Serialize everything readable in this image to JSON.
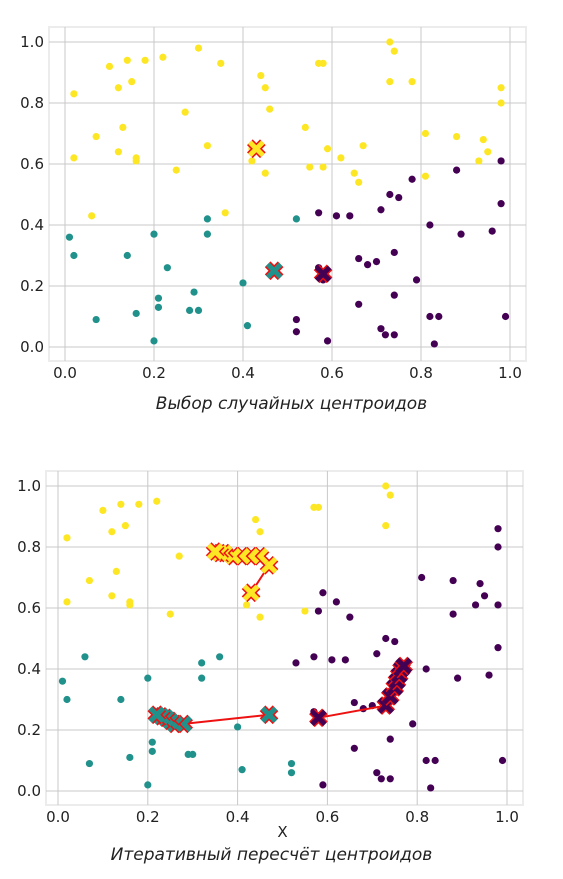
{
  "colors": {
    "yellow": "#fde725",
    "teal": "#21918c",
    "purple": "#440154",
    "path": "#ee1111",
    "centroid_outline": "#ee1111"
  },
  "chart_data": [
    {
      "type": "scatter",
      "title": "",
      "caption": "Выбор случайных центроидов",
      "xlabel": "",
      "ylabel": "",
      "xlim": [
        0,
        1
      ],
      "ylim": [
        0,
        1
      ],
      "xticks": [
        "0.0",
        "0.2",
        "0.4",
        "0.6",
        "0.8",
        "1.0"
      ],
      "yticks": [
        "0.0",
        "0.2",
        "0.4",
        "0.6",
        "0.8",
        "1.0"
      ],
      "grid": true,
      "series": [
        {
          "color": "yellow",
          "points": [
            [
              0.3,
              0.98
            ],
            [
              0.73,
              1.0
            ],
            [
              0.74,
              0.97
            ],
            [
              0.22,
              0.95
            ],
            [
              0.14,
              0.94
            ],
            [
              0.18,
              0.94
            ],
            [
              0.1,
              0.92
            ],
            [
              0.35,
              0.93
            ],
            [
              0.57,
              0.93
            ],
            [
              0.58,
              0.93
            ],
            [
              0.44,
              0.89
            ],
            [
              0.15,
              0.87
            ],
            [
              0.12,
              0.85
            ],
            [
              0.45,
              0.85
            ],
            [
              0.73,
              0.87
            ],
            [
              0.78,
              0.87
            ],
            [
              0.02,
              0.83
            ],
            [
              0.98,
              0.85
            ],
            [
              0.46,
              0.78
            ],
            [
              0.27,
              0.77
            ],
            [
              0.98,
              0.8
            ],
            [
              0.13,
              0.72
            ],
            [
              0.54,
              0.72
            ],
            [
              0.07,
              0.69
            ],
            [
              0.81,
              0.7
            ],
            [
              0.88,
              0.69
            ],
            [
              0.32,
              0.66
            ],
            [
              0.42,
              0.65
            ],
            [
              0.59,
              0.65
            ],
            [
              0.67,
              0.66
            ],
            [
              0.94,
              0.68
            ],
            [
              0.95,
              0.64
            ],
            [
              0.12,
              0.64
            ],
            [
              0.16,
              0.62
            ],
            [
              0.16,
              0.61
            ],
            [
              0.02,
              0.62
            ],
            [
              0.62,
              0.62
            ],
            [
              0.93,
              0.61
            ],
            [
              0.42,
              0.61
            ],
            [
              0.55,
              0.59
            ],
            [
              0.58,
              0.59
            ],
            [
              0.25,
              0.58
            ],
            [
              0.45,
              0.57
            ],
            [
              0.65,
              0.57
            ],
            [
              0.81,
              0.56
            ],
            [
              0.66,
              0.54
            ],
            [
              0.06,
              0.43
            ],
            [
              0.36,
              0.44
            ]
          ]
        },
        {
          "color": "teal",
          "points": [
            [
              0.01,
              0.36
            ],
            [
              0.02,
              0.3
            ],
            [
              0.07,
              0.09
            ],
            [
              0.14,
              0.3
            ],
            [
              0.16,
              0.11
            ],
            [
              0.2,
              0.37
            ],
            [
              0.21,
              0.16
            ],
            [
              0.21,
              0.13
            ],
            [
              0.2,
              0.02
            ],
            [
              0.23,
              0.26
            ],
            [
              0.29,
              0.18
            ],
            [
              0.28,
              0.12
            ],
            [
              0.3,
              0.12
            ],
            [
              0.32,
              0.42
            ],
            [
              0.32,
              0.37
            ],
            [
              0.4,
              0.21
            ],
            [
              0.41,
              0.07
            ],
            [
              0.52,
              0.42
            ]
          ]
        },
        {
          "color": "purple",
          "points": [
            [
              0.57,
              0.44
            ],
            [
              0.61,
              0.43
            ],
            [
              0.64,
              0.43
            ],
            [
              0.71,
              0.45
            ],
            [
              0.73,
              0.5
            ],
            [
              0.75,
              0.49
            ],
            [
              0.78,
              0.55
            ],
            [
              0.88,
              0.58
            ],
            [
              0.98,
              0.61
            ],
            [
              0.98,
              0.47
            ],
            [
              0.82,
              0.4
            ],
            [
              0.89,
              0.37
            ],
            [
              0.96,
              0.38
            ],
            [
              0.66,
              0.29
            ],
            [
              0.68,
              0.27
            ],
            [
              0.7,
              0.28
            ],
            [
              0.74,
              0.31
            ],
            [
              0.57,
              0.26
            ],
            [
              0.58,
              0.22
            ],
            [
              0.79,
              0.22
            ],
            [
              0.66,
              0.14
            ],
            [
              0.74,
              0.17
            ],
            [
              0.52,
              0.09
            ],
            [
              0.52,
              0.05
            ],
            [
              0.71,
              0.06
            ],
            [
              0.72,
              0.04
            ],
            [
              0.74,
              0.04
            ],
            [
              0.82,
              0.1
            ],
            [
              0.84,
              0.1
            ],
            [
              0.99,
              0.1
            ],
            [
              0.83,
              0.01
            ],
            [
              0.59,
              0.02
            ]
          ]
        }
      ],
      "centroids": [
        {
          "color": "yellow",
          "path": [
            [
              0.43,
              0.65
            ]
          ]
        },
        {
          "color": "teal",
          "path": [
            [
              0.47,
              0.25
            ]
          ]
        },
        {
          "color": "purple",
          "path": [
            [
              0.58,
              0.24
            ]
          ]
        }
      ]
    },
    {
      "type": "scatter",
      "title": "",
      "caption": "Итеративный пересчёт центроидов",
      "xlabel": "X",
      "ylabel": "",
      "xlim": [
        0,
        1
      ],
      "ylim": [
        0,
        1
      ],
      "xticks": [
        "0.0",
        "0.2",
        "0.4",
        "0.6",
        "0.8",
        "1.0"
      ],
      "yticks": [
        "0.0",
        "0.2",
        "0.4",
        "0.6",
        "0.8",
        "1.0"
      ],
      "grid": true,
      "series": [
        {
          "color": "yellow",
          "points": [
            [
              0.73,
              1.0
            ],
            [
              0.74,
              0.97
            ],
            [
              0.22,
              0.95
            ],
            [
              0.14,
              0.94
            ],
            [
              0.18,
              0.94
            ],
            [
              0.1,
              0.92
            ],
            [
              0.57,
              0.93
            ],
            [
              0.58,
              0.93
            ],
            [
              0.44,
              0.89
            ],
            [
              0.15,
              0.87
            ],
            [
              0.12,
              0.85
            ],
            [
              0.45,
              0.85
            ],
            [
              0.73,
              0.87
            ],
            [
              0.02,
              0.83
            ],
            [
              0.27,
              0.77
            ],
            [
              0.13,
              0.72
            ],
            [
              0.07,
              0.69
            ],
            [
              0.12,
              0.64
            ],
            [
              0.16,
              0.62
            ],
            [
              0.16,
              0.61
            ],
            [
              0.02,
              0.62
            ],
            [
              0.25,
              0.58
            ],
            [
              0.45,
              0.57
            ],
            [
              0.55,
              0.59
            ],
            [
              0.42,
              0.61
            ]
          ]
        },
        {
          "color": "teal",
          "points": [
            [
              0.06,
              0.44
            ],
            [
              0.01,
              0.36
            ],
            [
              0.02,
              0.3
            ],
            [
              0.07,
              0.09
            ],
            [
              0.14,
              0.3
            ],
            [
              0.16,
              0.11
            ],
            [
              0.2,
              0.37
            ],
            [
              0.21,
              0.16
            ],
            [
              0.21,
              0.13
            ],
            [
              0.2,
              0.02
            ],
            [
              0.29,
              0.12
            ],
            [
              0.3,
              0.12
            ],
            [
              0.32,
              0.42
            ],
            [
              0.32,
              0.37
            ],
            [
              0.36,
              0.44
            ],
            [
              0.4,
              0.21
            ],
            [
              0.41,
              0.07
            ],
            [
              0.52,
              0.09
            ],
            [
              0.52,
              0.06
            ]
          ]
        },
        {
          "color": "purple",
          "points": [
            [
              0.98,
              0.86
            ],
            [
              0.98,
              0.8
            ],
            [
              0.81,
              0.7
            ],
            [
              0.88,
              0.69
            ],
            [
              0.94,
              0.68
            ],
            [
              0.95,
              0.64
            ],
            [
              0.93,
              0.61
            ],
            [
              0.98,
              0.61
            ],
            [
              0.88,
              0.58
            ],
            [
              0.58,
              0.59
            ],
            [
              0.62,
              0.62
            ],
            [
              0.59,
              0.65
            ],
            [
              0.65,
              0.57
            ],
            [
              0.53,
              0.42
            ],
            [
              0.57,
              0.44
            ],
            [
              0.61,
              0.43
            ],
            [
              0.64,
              0.43
            ],
            [
              0.71,
              0.45
            ],
            [
              0.73,
              0.5
            ],
            [
              0.75,
              0.49
            ],
            [
              0.98,
              0.47
            ],
            [
              0.82,
              0.4
            ],
            [
              0.89,
              0.37
            ],
            [
              0.96,
              0.38
            ],
            [
              0.66,
              0.29
            ],
            [
              0.68,
              0.27
            ],
            [
              0.7,
              0.28
            ],
            [
              0.74,
              0.31
            ],
            [
              0.57,
              0.26
            ],
            [
              0.79,
              0.22
            ],
            [
              0.66,
              0.14
            ],
            [
              0.74,
              0.17
            ],
            [
              0.71,
              0.06
            ],
            [
              0.72,
              0.04
            ],
            [
              0.74,
              0.04
            ],
            [
              0.82,
              0.1
            ],
            [
              0.84,
              0.1
            ],
            [
              0.99,
              0.1
            ],
            [
              0.83,
              0.01
            ],
            [
              0.59,
              0.02
            ]
          ]
        }
      ],
      "centroids": [
        {
          "color": "yellow",
          "path": [
            [
              0.43,
              0.65
            ],
            [
              0.47,
              0.74
            ],
            [
              0.45,
              0.77
            ],
            [
              0.43,
              0.77
            ],
            [
              0.41,
              0.77
            ],
            [
              0.39,
              0.77
            ],
            [
              0.37,
              0.78
            ],
            [
              0.36,
              0.78
            ],
            [
              0.35,
              0.785
            ]
          ]
        },
        {
          "color": "teal",
          "path": [
            [
              0.47,
              0.25
            ],
            [
              0.28,
              0.22
            ],
            [
              0.26,
              0.22
            ],
            [
              0.25,
              0.23
            ],
            [
              0.24,
              0.24
            ],
            [
              0.23,
              0.245
            ],
            [
              0.22,
              0.25
            ]
          ]
        },
        {
          "color": "purple",
          "path": [
            [
              0.58,
              0.24
            ],
            [
              0.73,
              0.28
            ],
            [
              0.74,
              0.31
            ],
            [
              0.75,
              0.34
            ],
            [
              0.755,
              0.36
            ],
            [
              0.76,
              0.38
            ],
            [
              0.765,
              0.4
            ],
            [
              0.77,
              0.41
            ]
          ]
        }
      ]
    }
  ]
}
